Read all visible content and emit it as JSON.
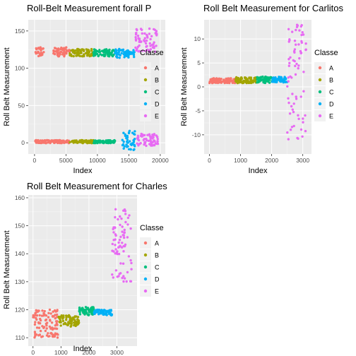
{
  "classes": [
    "A",
    "B",
    "C",
    "D",
    "E"
  ],
  "colors": {
    "A": "#F8766D",
    "B": "#A3A500",
    "C": "#00BF7D",
    "D": "#00B0F6",
    "E": "#E76BF3",
    "panel_bg": "#EBEBEB",
    "grid_major": "#FFFFFF",
    "grid_minor": "#F5F5F5"
  },
  "chart_data": [
    {
      "id": "all",
      "type": "scatter",
      "title": "Roll-Belt Measurement forall Participants",
      "xlabel": "Index",
      "ylabel": "Roll Belt Measurement",
      "xlim": [
        -1000,
        20800
      ],
      "ylim": [
        -15,
        165
      ],
      "xticks": [
        0,
        5000,
        10000,
        15000,
        20000
      ],
      "xtick_labels": [
        "0",
        "5000",
        "10000",
        "15000",
        "20000"
      ],
      "yticks": [
        0,
        50,
        100,
        150
      ],
      "ytick_labels": [
        "0",
        "50",
        "100",
        "150"
      ],
      "legend_title": "Classe",
      "legend_position": "right",
      "grid": true,
      "groups": [
        {
          "classe": "A",
          "x_range": [
            0,
            5580
          ],
          "clusters": [
            [
              0,
              1500,
              122,
              6
            ],
            [
              3000,
              5580,
              122,
              6
            ],
            [
              0,
              5580,
              1.5,
              2
            ]
          ]
        },
        {
          "classe": "B",
          "x_range": [
            5580,
            9380
          ],
          "clusters": [
            [
              5580,
              9380,
              121,
              5
            ],
            [
              5580,
              9380,
              1.5,
              2
            ]
          ]
        },
        {
          "classe": "C",
          "x_range": [
            9380,
            12800
          ],
          "clusters": [
            [
              9380,
              12800,
              121,
              5
            ],
            [
              9380,
              12800,
              1.5,
              2
            ]
          ]
        },
        {
          "classe": "D",
          "x_range": [
            12800,
            16020
          ],
          "clusters": [
            [
              12800,
              16020,
              120,
              6
            ],
            [
              13800,
              16020,
              3,
              14
            ]
          ]
        },
        {
          "classe": "E",
          "x_range": [
            16020,
            19620
          ],
          "clusters": [
            [
              16020,
              19620,
              138,
              16
            ],
            [
              16020,
              19620,
              4,
              8
            ]
          ]
        }
      ]
    },
    {
      "id": "carlitos",
      "type": "scatter",
      "title": "Roll Belt Measurement for Carlitos",
      "xlabel": "Index",
      "ylabel": "Roll Belt Measurement",
      "xlim": [
        -170,
        3280
      ],
      "ylim": [
        -14,
        14
      ],
      "xticks": [
        0,
        1000,
        2000,
        3000
      ],
      "xtick_labels": [
        "0",
        "1000",
        "2000",
        "3000"
      ],
      "yticks": [
        -10,
        -5,
        0,
        5,
        10
      ],
      "ytick_labels": [
        "-10",
        "-5",
        "0",
        "5",
        "10"
      ],
      "legend_title": "Classe",
      "legend_position": "right",
      "grid": true,
      "groups": [
        {
          "classe": "A",
          "x_range": [
            0,
            834
          ],
          "clusters": [
            [
              0,
              834,
              1.3,
              0.5
            ]
          ]
        },
        {
          "classe": "B",
          "x_range": [
            834,
            1524
          ],
          "clusters": [
            [
              834,
              1524,
              1.4,
              0.6
            ]
          ]
        },
        {
          "classe": "C",
          "x_range": [
            1524,
            2017
          ],
          "clusters": [
            [
              1524,
              2017,
              1.5,
              0.7
            ]
          ]
        },
        {
          "classe": "D",
          "x_range": [
            2017,
            2503
          ],
          "clusters": [
            [
              2017,
              2503,
              1.5,
              0.6
            ]
          ]
        },
        {
          "classe": "E",
          "x_range": [
            2503,
            3112
          ],
          "clusters": [
            [
              2503,
              3112,
              1,
              12
            ]
          ]
        }
      ]
    },
    {
      "id": "charles",
      "type": "scatter",
      "title": "Roll Belt Measurement for Charles",
      "xlabel": "Index",
      "ylabel": "Roll Belt Measurement",
      "xlim": [
        -170,
        3720
      ],
      "ylim": [
        107,
        161
      ],
      "xticks": [
        0,
        1000,
        2000,
        3000
      ],
      "xtick_labels": [
        "0",
        "1000",
        "2000",
        "3000"
      ],
      "yticks": [
        110,
        120,
        130,
        140,
        150,
        160
      ],
      "ytick_labels": [
        "110",
        "120",
        "130",
        "140",
        "150",
        "160"
      ],
      "legend_title": "Classe",
      "legend_position": "right",
      "grid": true,
      "groups": [
        {
          "classe": "A",
          "x_range": [
            0,
            899
          ],
          "clusters": [
            [
              0,
              899,
              115,
              5
            ]
          ]
        },
        {
          "classe": "B",
          "x_range": [
            899,
            1644
          ],
          "clusters": [
            [
              899,
              1644,
              116,
              2
            ]
          ]
        },
        {
          "classe": "C",
          "x_range": [
            1644,
            2180
          ],
          "clusters": [
            [
              1644,
              2180,
              119.5,
              1.5
            ]
          ]
        },
        {
          "classe": "D",
          "x_range": [
            2180,
            2821
          ],
          "clusters": [
            [
              2180,
              2821,
              119,
              1
            ]
          ]
        },
        {
          "classe": "E",
          "x_range": [
            2821,
            3536
          ],
          "clusters": [
            [
              2821,
              3536,
              143,
              13
            ]
          ]
        }
      ]
    }
  ]
}
